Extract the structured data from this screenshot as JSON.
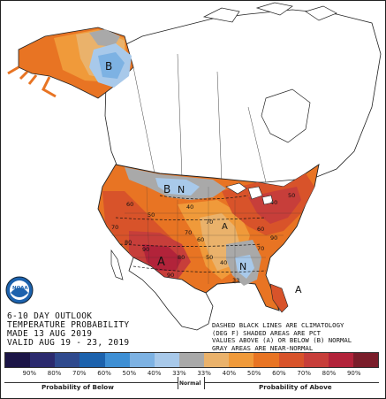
{
  "title": {
    "line1": "6-10 DAY OUTLOOK",
    "line2": "TEMPERATURE PROBABILITY",
    "line3": "MADE   13 AUG 2019",
    "line4": "VALID  AUG 19 - 23, 2019"
  },
  "notes": {
    "line1": "DASHED BLACK LINES ARE CLIMATOLOGY",
    "line2": "(DEG F) SHADED AREAS ARE PCT",
    "line3": "VALUES ABOVE (A) OR BELOW (B) NORMAL",
    "line4": "GRAY AREAS ARE NEAR-NORMAL"
  },
  "logo_text": "NOAA",
  "map_labels": {
    "alaska_below": "B",
    "central_below": "B",
    "central_normal": "N",
    "southeast_normal": "N",
    "southwest_above": "A",
    "florida_above": "A",
    "central_above": "A"
  },
  "contour_labels": [
    "70",
    "60",
    "50",
    "80",
    "90",
    "40",
    "70",
    "60",
    "50",
    "40",
    "33",
    "70",
    "80",
    "90",
    "40",
    "50",
    "60",
    "90",
    "70"
  ],
  "legend": {
    "colors": [
      "#1c1547",
      "#2b2a6e",
      "#2f4a8e",
      "#1c62ad",
      "#3e8fd4",
      "#7db2e3",
      "#a8c9ea",
      "#a9a9a9",
      "#eab26b",
      "#f09a3a",
      "#e87423",
      "#d8532a",
      "#c73e3a",
      "#b2233a",
      "#7a1d2a"
    ],
    "labels": [
      "90%",
      "80%",
      "70%",
      "60%",
      "50%",
      "40%",
      "33%",
      "33%",
      "40%",
      "50%",
      "60%",
      "70%",
      "80%",
      "90%"
    ],
    "below_caption": "Probability of Below",
    "normal_caption": "Normal",
    "above_caption": "Probability of Above"
  }
}
